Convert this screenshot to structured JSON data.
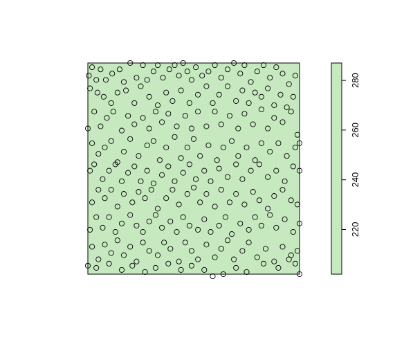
{
  "chart_data": {
    "type": "scatter",
    "title": "",
    "xlabel": "",
    "ylabel": "",
    "axes_shown": false,
    "panel_fill": "#c7e9c0",
    "marker": "open-circle",
    "marker_color": "#000000",
    "colorbar": {
      "fill": "#c7e9c0",
      "range": [
        202,
        287
      ],
      "ticks": [
        {
          "value": 220,
          "label": "220"
        },
        {
          "value": 240,
          "label": "240"
        },
        {
          "value": 260,
          "label": "260"
        },
        {
          "value": 280,
          "label": "280"
        }
      ]
    },
    "points": [
      [
        0.005,
        0.94
      ],
      [
        0.02,
        0.98
      ],
      [
        0.04,
        0.92
      ],
      [
        0.06,
        0.97
      ],
      [
        0.085,
        0.92
      ],
      [
        0.115,
        0.95
      ],
      [
        0.15,
        0.97
      ],
      [
        0.17,
        0.91
      ],
      [
        0.2,
        1.0
      ],
      [
        0.23,
        0.93
      ],
      [
        0.26,
        0.99
      ],
      [
        0.28,
        0.92
      ],
      [
        0.31,
        0.96
      ],
      [
        0.33,
        0.99
      ],
      [
        0.355,
        0.93
      ],
      [
        0.385,
        0.97
      ],
      [
        0.41,
        0.99
      ],
      [
        0.43,
        0.94
      ],
      [
        0.45,
        1.0
      ],
      [
        0.47,
        0.96
      ],
      [
        0.49,
        0.92
      ],
      [
        0.51,
        0.98
      ],
      [
        0.54,
        0.94
      ],
      [
        0.57,
        0.96
      ],
      [
        0.6,
        0.99
      ],
      [
        0.63,
        0.93
      ],
      [
        0.66,
        0.97
      ],
      [
        0.69,
        1.0
      ],
      [
        0.72,
        0.95
      ],
      [
        0.74,
        0.99
      ],
      [
        0.77,
        0.91
      ],
      [
        0.8,
        0.96
      ],
      [
        0.83,
        0.99
      ],
      [
        0.86,
        0.93
      ],
      [
        0.89,
        0.98
      ],
      [
        0.92,
        0.95
      ],
      [
        0.95,
        0.9
      ],
      [
        0.98,
        0.94
      ],
      [
        0.01,
        0.88
      ],
      [
        0.045,
        0.86
      ],
      [
        0.075,
        0.84
      ],
      [
        0.11,
        0.81
      ],
      [
        0.14,
        0.86
      ],
      [
        0.18,
        0.87
      ],
      [
        0.22,
        0.81
      ],
      [
        0.25,
        0.89
      ],
      [
        0.29,
        0.84
      ],
      [
        0.33,
        0.8
      ],
      [
        0.37,
        0.86
      ],
      [
        0.4,
        0.82
      ],
      [
        0.44,
        0.87
      ],
      [
        0.48,
        0.81
      ],
      [
        0.52,
        0.85
      ],
      [
        0.56,
        0.89
      ],
      [
        0.59,
        0.81
      ],
      [
        0.62,
        0.85
      ],
      [
        0.66,
        0.89
      ],
      [
        0.7,
        0.82
      ],
      [
        0.73,
        0.87
      ],
      [
        0.76,
        0.81
      ],
      [
        0.79,
        0.86
      ],
      [
        0.82,
        0.84
      ],
      [
        0.85,
        0.88
      ],
      [
        0.88,
        0.8
      ],
      [
        0.91,
        0.85
      ],
      [
        0.94,
        0.79
      ],
      [
        0.97,
        0.84
      ],
      [
        0.0,
        0.69
      ],
      [
        0.03,
        0.77
      ],
      [
        0.06,
        0.7
      ],
      [
        0.09,
        0.74
      ],
      [
        0.12,
        0.77
      ],
      [
        0.16,
        0.68
      ],
      [
        0.19,
        0.75
      ],
      [
        0.22,
        0.71
      ],
      [
        0.26,
        0.74
      ],
      [
        0.29,
        0.69
      ],
      [
        0.32,
        0.77
      ],
      [
        0.35,
        0.72
      ],
      [
        0.38,
        0.76
      ],
      [
        0.42,
        0.7
      ],
      [
        0.46,
        0.75
      ],
      [
        0.49,
        0.69
      ],
      [
        0.52,
        0.77
      ],
      [
        0.56,
        0.7
      ],
      [
        0.6,
        0.77
      ],
      [
        0.63,
        0.71
      ],
      [
        0.67,
        0.75
      ],
      [
        0.71,
        0.69
      ],
      [
        0.74,
        0.76
      ],
      [
        0.78,
        0.71
      ],
      [
        0.82,
        0.78
      ],
      [
        0.85,
        0.69
      ],
      [
        0.88,
        0.74
      ],
      [
        0.92,
        0.72
      ],
      [
        0.96,
        0.77
      ],
      [
        0.99,
        0.66
      ],
      [
        0.02,
        0.62
      ],
      [
        0.05,
        0.57
      ],
      [
        0.08,
        0.6
      ],
      [
        0.11,
        0.63
      ],
      [
        0.14,
        0.53
      ],
      [
        0.17,
        0.58
      ],
      [
        0.2,
        0.64
      ],
      [
        0.24,
        0.56
      ],
      [
        0.28,
        0.61
      ],
      [
        0.31,
        0.63
      ],
      [
        0.34,
        0.54
      ],
      [
        0.37,
        0.6
      ],
      [
        0.41,
        0.65
      ],
      [
        0.44,
        0.55
      ],
      [
        0.47,
        0.6
      ],
      [
        0.5,
        0.64
      ],
      [
        0.53,
        0.56
      ],
      [
        0.57,
        0.61
      ],
      [
        0.61,
        0.54
      ],
      [
        0.64,
        0.6
      ],
      [
        0.68,
        0.63
      ],
      [
        0.71,
        0.56
      ],
      [
        0.75,
        0.6
      ],
      [
        0.79,
        0.54
      ],
      [
        0.82,
        0.62
      ],
      [
        0.86,
        0.58
      ],
      [
        0.9,
        0.62
      ],
      [
        0.94,
        0.56
      ],
      [
        0.98,
        0.6
      ],
      [
        1.0,
        0.62
      ],
      [
        0.01,
        0.49
      ],
      [
        0.03,
        0.52
      ],
      [
        0.07,
        0.45
      ],
      [
        0.1,
        0.49
      ],
      [
        0.13,
        0.52
      ],
      [
        0.16,
        0.44
      ],
      [
        0.19,
        0.48
      ],
      [
        0.22,
        0.51
      ],
      [
        0.25,
        0.44
      ],
      [
        0.28,
        0.49
      ],
      [
        0.31,
        0.43
      ],
      [
        0.35,
        0.47
      ],
      [
        0.38,
        0.51
      ],
      [
        0.41,
        0.44
      ],
      [
        0.45,
        0.48
      ],
      [
        0.48,
        0.52
      ],
      [
        0.51,
        0.45
      ],
      [
        0.55,
        0.49
      ],
      [
        0.58,
        0.44
      ],
      [
        0.62,
        0.5
      ],
      [
        0.66,
        0.46
      ],
      [
        0.7,
        0.52
      ],
      [
        0.73,
        0.45
      ],
      [
        0.77,
        0.49
      ],
      [
        0.81,
        0.52
      ],
      [
        0.85,
        0.46
      ],
      [
        0.89,
        0.49
      ],
      [
        0.93,
        0.44
      ],
      [
        0.97,
        0.51
      ],
      [
        1.0,
        0.49
      ],
      [
        0.02,
        0.34
      ],
      [
        0.05,
        0.4
      ],
      [
        0.08,
        0.36
      ],
      [
        0.11,
        0.4
      ],
      [
        0.14,
        0.32
      ],
      [
        0.17,
        0.38
      ],
      [
        0.21,
        0.34
      ],
      [
        0.24,
        0.39
      ],
      [
        0.27,
        0.36
      ],
      [
        0.3,
        0.4
      ],
      [
        0.33,
        0.31
      ],
      [
        0.37,
        0.36
      ],
      [
        0.4,
        0.4
      ],
      [
        0.43,
        0.33
      ],
      [
        0.47,
        0.38
      ],
      [
        0.5,
        0.41
      ],
      [
        0.53,
        0.34
      ],
      [
        0.56,
        0.38
      ],
      [
        0.6,
        0.32
      ],
      [
        0.63,
        0.4
      ],
      [
        0.67,
        0.34
      ],
      [
        0.7,
        0.38
      ],
      [
        0.74,
        0.33
      ],
      [
        0.78,
        0.39
      ],
      [
        0.81,
        0.35
      ],
      [
        0.85,
        0.31
      ],
      [
        0.88,
        0.37
      ],
      [
        0.92,
        0.4
      ],
      [
        0.96,
        0.35
      ],
      [
        0.99,
        0.33
      ],
      [
        0.01,
        0.21
      ],
      [
        0.04,
        0.27
      ],
      [
        0.07,
        0.22
      ],
      [
        0.1,
        0.27
      ],
      [
        0.13,
        0.2
      ],
      [
        0.16,
        0.24
      ],
      [
        0.2,
        0.28
      ],
      [
        0.23,
        0.23
      ],
      [
        0.26,
        0.2
      ],
      [
        0.29,
        0.25
      ],
      [
        0.32,
        0.28
      ],
      [
        0.35,
        0.22
      ],
      [
        0.39,
        0.25
      ],
      [
        0.42,
        0.2
      ],
      [
        0.45,
        0.27
      ],
      [
        0.48,
        0.23
      ],
      [
        0.52,
        0.21
      ],
      [
        0.55,
        0.26
      ],
      [
        0.58,
        0.2
      ],
      [
        0.62,
        0.23
      ],
      [
        0.65,
        0.27
      ],
      [
        0.68,
        0.19
      ],
      [
        0.72,
        0.24
      ],
      [
        0.76,
        0.21
      ],
      [
        0.79,
        0.27
      ],
      [
        0.82,
        0.23
      ],
      [
        0.86,
        0.28
      ],
      [
        0.89,
        0.22
      ],
      [
        0.93,
        0.26
      ],
      [
        0.97,
        0.2
      ],
      [
        1.0,
        0.24
      ],
      [
        0.02,
        0.13
      ],
      [
        0.05,
        0.07
      ],
      [
        0.08,
        0.14
      ],
      [
        0.11,
        0.1
      ],
      [
        0.14,
        0.16
      ],
      [
        0.17,
        0.09
      ],
      [
        0.2,
        0.13
      ],
      [
        0.23,
        0.06
      ],
      [
        0.26,
        0.15
      ],
      [
        0.29,
        0.11
      ],
      [
        0.33,
        0.09
      ],
      [
        0.36,
        0.15
      ],
      [
        0.39,
        0.12
      ],
      [
        0.43,
        0.06
      ],
      [
        0.46,
        0.15
      ],
      [
        0.49,
        0.11
      ],
      [
        0.52,
        0.07
      ],
      [
        0.56,
        0.14
      ],
      [
        0.6,
        0.08
      ],
      [
        0.63,
        0.12
      ],
      [
        0.66,
        0.16
      ],
      [
        0.69,
        0.07
      ],
      [
        0.73,
        0.11
      ],
      [
        0.76,
        0.15
      ],
      [
        0.8,
        0.08
      ],
      [
        0.84,
        0.12
      ],
      [
        0.88,
        0.06
      ],
      [
        0.92,
        0.13
      ],
      [
        0.96,
        0.09
      ],
      [
        0.99,
        0.11
      ],
      [
        0.0,
        0.04
      ],
      [
        0.04,
        0.03
      ],
      [
        0.1,
        0.05
      ],
      [
        0.16,
        0.02
      ],
      [
        0.21,
        0.04
      ],
      [
        0.27,
        0.01
      ],
      [
        0.32,
        0.03
      ],
      [
        0.38,
        0.05
      ],
      [
        0.44,
        0.02
      ],
      [
        0.49,
        0.04
      ],
      [
        0.55,
        0.02
      ],
      [
        0.59,
        -0.01
      ],
      [
        0.64,
        0.0
      ],
      [
        0.7,
        0.03
      ],
      [
        0.75,
        0.01
      ],
      [
        0.83,
        0.05
      ],
      [
        0.9,
        0.03
      ],
      [
        0.95,
        0.07
      ],
      [
        0.98,
        0.05
      ],
      [
        1.0,
        0.0
      ]
    ]
  }
}
